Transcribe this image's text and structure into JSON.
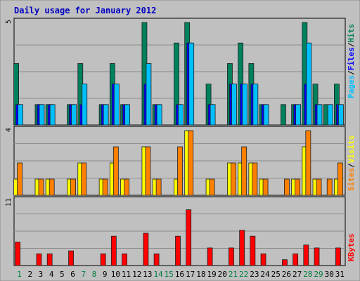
{
  "chart_data": {
    "type": "bar",
    "title": "Daily usage for January 2012",
    "days": [
      "1",
      "2",
      "3",
      "4",
      "5",
      "6",
      "7",
      "8",
      "9",
      "10",
      "11",
      "12",
      "13",
      "14",
      "15",
      "16",
      "17",
      "18",
      "19",
      "20",
      "21",
      "22",
      "23",
      "24",
      "25",
      "26",
      "27",
      "28",
      "29",
      "30",
      "31"
    ],
    "weekend_days": [
      1,
      7,
      8,
      14,
      15,
      21,
      22,
      28,
      29
    ],
    "panels": [
      {
        "name": "hits-files-pages",
        "ymax_label": "5",
        "ymax": 5,
        "series": [
          {
            "name": "Hits",
            "color": "#00805c",
            "values": [
              3,
              0,
              1,
              1,
              0,
              1,
              3,
              0,
              1,
              3,
              1,
              0,
              5,
              1,
              0,
              4,
              5,
              0,
              2,
              0,
              3,
              4,
              3,
              1,
              0,
              1,
              1,
              5,
              2,
              1,
              2
            ]
          },
          {
            "name": "Files",
            "color": "#0000ff",
            "values": [
              1,
              0,
              1,
              1,
              0,
              1,
              1,
              0,
              1,
              2,
              1,
              0,
              2,
              1,
              0,
              1,
              4,
              0,
              1,
              0,
              2,
              2,
              2,
              1,
              0,
              0,
              1,
              2,
              1,
              0,
              1
            ]
          },
          {
            "name": "Pages",
            "color": "#00bfff",
            "values": [
              1,
              0,
              1,
              1,
              0,
              1,
              2,
              0,
              1,
              2,
              1,
              0,
              3,
              1,
              0,
              1,
              4,
              0,
              1,
              0,
              2,
              2,
              2,
              1,
              0,
              0,
              1,
              4,
              1,
              1,
              1
            ]
          }
        ],
        "legend": [
          "Pages",
          "/",
          "Files",
          "/",
          "Hits"
        ],
        "legend_colors": [
          "#00bfff",
          "#000000",
          "#0000ff",
          "#000000",
          "#00805c"
        ]
      },
      {
        "name": "visits-sites",
        "ymax_label": "4",
        "ymax": 4,
        "series": [
          {
            "name": "Visits",
            "color": "#ffff00",
            "values": [
              1,
              0,
              1,
              1,
              0,
              1,
              2,
              0,
              1,
              2,
              1,
              0,
              3,
              1,
              0,
              1,
              4,
              0,
              1,
              0,
              2,
              2,
              2,
              1,
              0,
              0,
              1,
              3,
              1,
              0,
              1
            ]
          },
          {
            "name": "Sites",
            "color": "#ff8000",
            "values": [
              2,
              0,
              1,
              1,
              0,
              1,
              2,
              0,
              1,
              3,
              1,
              0,
              3,
              1,
              0,
              3,
              4,
              0,
              1,
              0,
              2,
              3,
              2,
              1,
              0,
              1,
              1,
              4,
              1,
              1,
              2
            ]
          }
        ],
        "legend": [
          "Sites",
          "/",
          "Visits"
        ],
        "legend_colors": [
          "#ff8000",
          "#000000",
          "#ffff00"
        ]
      },
      {
        "name": "kbytes",
        "ymax_label": "11",
        "ymax": 11,
        "series": [
          {
            "name": "KBytes",
            "color": "#ff0000",
            "values": [
              4,
              0,
              2,
              2,
              0,
              2.5,
              0,
              0,
              2,
              5,
              2,
              0,
              5.5,
              2,
              0,
              5,
              9.5,
              0,
              3,
              0,
              3,
              6,
              5,
              2,
              0,
              1,
              2,
              3.5,
              3,
              0,
              3
            ]
          }
        ],
        "legend": [
          "KBytes"
        ],
        "legend_colors": [
          "#ff0000"
        ]
      }
    ]
  },
  "colors": {
    "background": "#c0c0c0",
    "frame_border": "#8a8a8a",
    "title_color": "#0000c0",
    "weekday_label": "#000000",
    "weekend_label": "#008040",
    "gridline": "#8c8c8c"
  }
}
